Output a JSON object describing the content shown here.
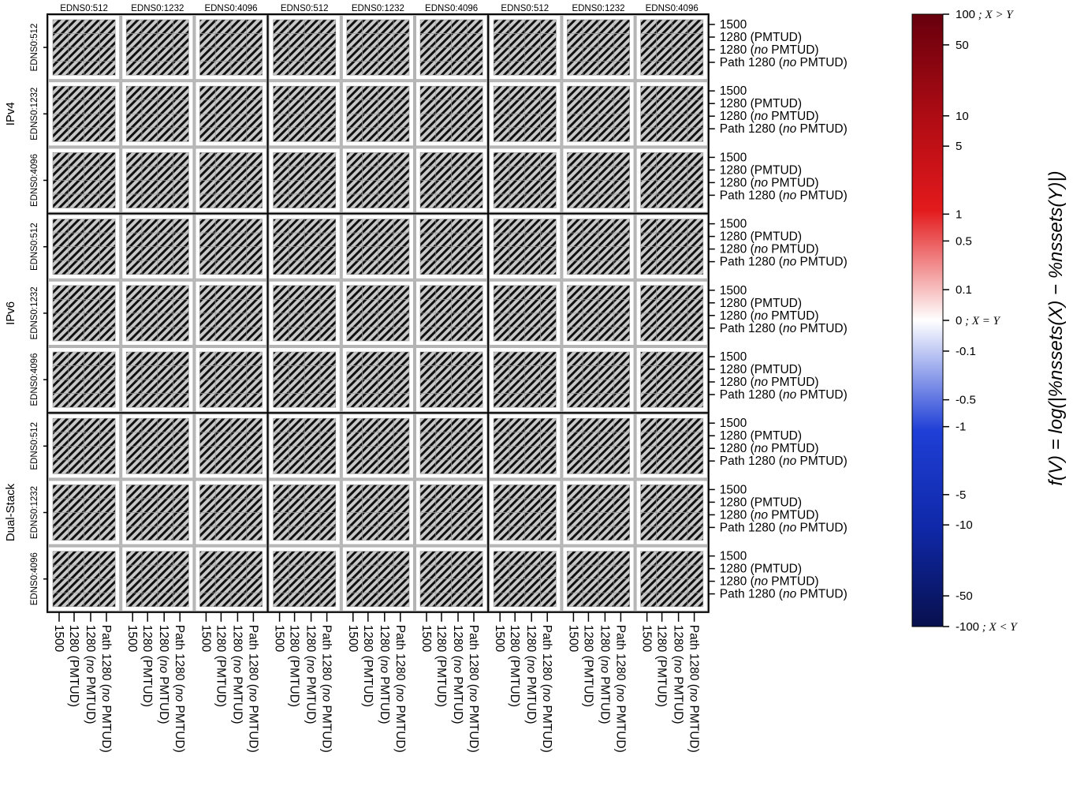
{
  "chart_data": {
    "type": "heatmap",
    "title": "",
    "group_rows": [
      "IPv4",
      "IPv6",
      "Dual-Stack"
    ],
    "edns_sizes": [
      "EDNS0:512",
      "EDNS0:1232",
      "EDNS0:4096"
    ],
    "path_configs": [
      "1500",
      "1280 (PMTUD)",
      "1280 (no PMTUD)",
      "Path 1280 (no PMTUD)"
    ],
    "path_config_parts": [
      {
        "pre": "1500",
        "ital": "",
        "post": ""
      },
      {
        "pre": "1280 (PMTUD)",
        "ital": "",
        "post": ""
      },
      {
        "pre": "1280 (",
        "ital": "no",
        "post": " PMTUD)"
      },
      {
        "pre": "Path 1280 (",
        "ital": "no",
        "post": " PMTUD)"
      }
    ],
    "group_cols": 3,
    "cell_state": "hatched",
    "cell_value": 0,
    "colorbar": {
      "label": "f(V) = log(|%nssets(X) − %nssets(Y)|)",
      "range": [
        -100,
        100
      ],
      "ticks": [
        {
          "value": 100,
          "label": "100 ; X > Y"
        },
        {
          "value": 50,
          "label": "50"
        },
        {
          "value": 10,
          "label": "10"
        },
        {
          "value": 5,
          "label": "5"
        },
        {
          "value": 1,
          "label": "1"
        },
        {
          "value": 0.5,
          "label": "0.5"
        },
        {
          "value": 0.1,
          "label": "0.1"
        },
        {
          "value": 0,
          "label": "0 ; X = Y"
        },
        {
          "value": -0.1,
          "label": "-0.1"
        },
        {
          "value": -0.5,
          "label": "-0.5"
        },
        {
          "value": -1,
          "label": "-1"
        },
        {
          "value": -5,
          "label": "-5"
        },
        {
          "value": -10,
          "label": "-10"
        },
        {
          "value": -50,
          "label": "-50"
        },
        {
          "value": -100,
          "label": "-100 ; X < Y"
        }
      ],
      "colors": {
        "max": "#67000d",
        "high": "#e31a1c",
        "zero": "#ffffff",
        "low": "#1f3fd6",
        "min": "#08104d"
      }
    },
    "colors": {
      "cell_fill": "#c8c8c8",
      "hatch": "#111111",
      "cell_border": "#b4b4b4"
    }
  }
}
